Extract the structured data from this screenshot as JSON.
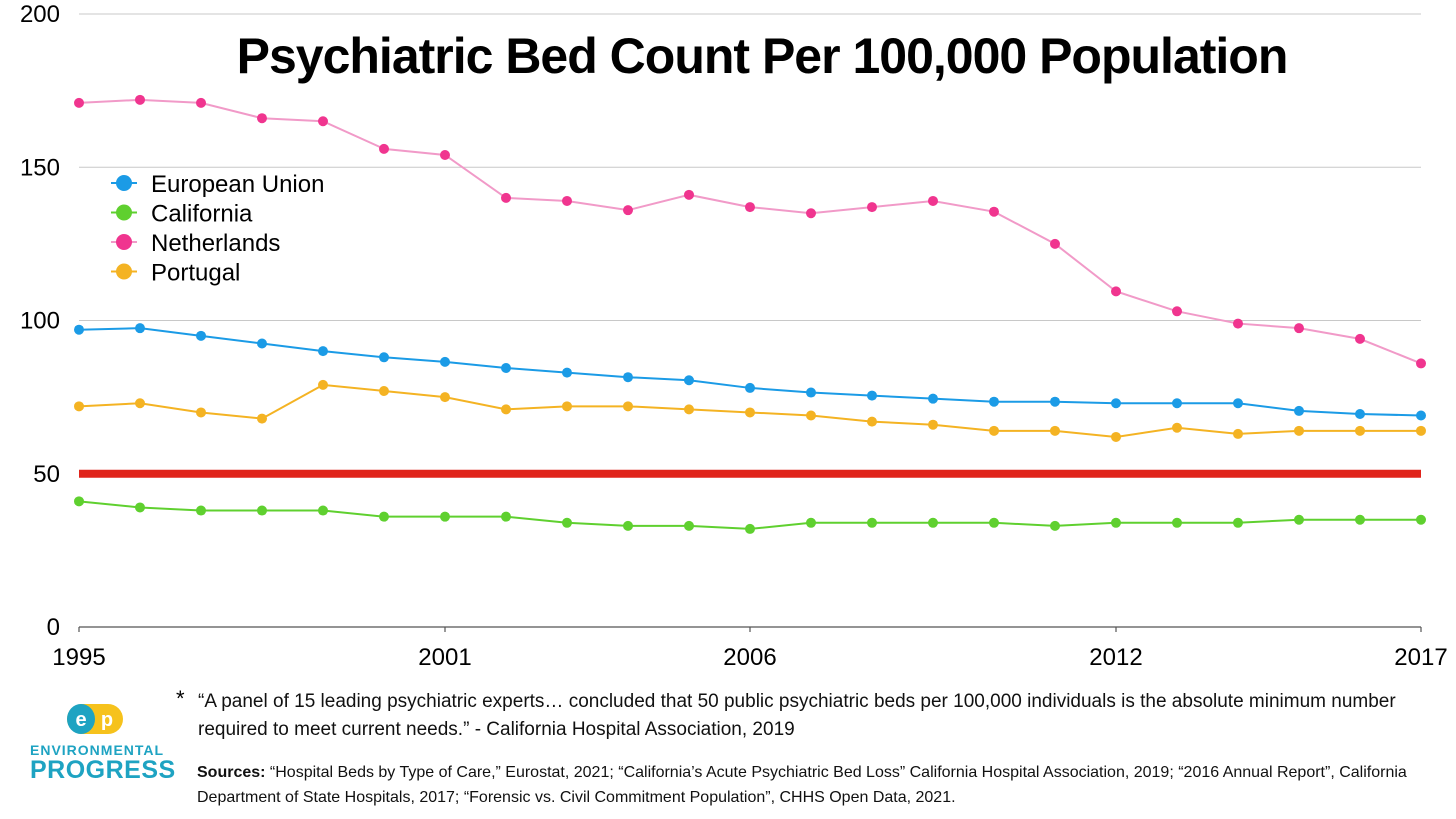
{
  "chart_data": {
    "type": "line",
    "title": "Psychiatric Bed Count Per 100,000 Population",
    "xlim": [
      1995,
      2017
    ],
    "ylim": [
      0,
      200
    ],
    "x_ticks": [
      "1995",
      "2001",
      "2006",
      "2012",
      "2017"
    ],
    "y_ticks": [
      "0",
      "50",
      "100",
      "150",
      "200"
    ],
    "grid": true,
    "legend_position": "top-left",
    "x": [
      1995,
      1996,
      1997,
      1998,
      1999,
      2000,
      2001,
      2002,
      2003,
      2004,
      2005,
      2006,
      2007,
      2008,
      2009,
      2010,
      2011,
      2012,
      2013,
      2014,
      2015,
      2016,
      2017
    ],
    "series": [
      {
        "name": "European Union",
        "color": "#1b9be6",
        "line_color": "#1b9be6",
        "values": [
          97,
          97.5,
          95,
          92.5,
          90,
          88,
          86.5,
          84.5,
          83,
          81.5,
          80.5,
          78,
          76.5,
          75.5,
          74.5,
          73.5,
          73.5,
          73,
          73,
          73,
          70.5,
          69.5,
          69
        ]
      },
      {
        "name": "California",
        "color": "#5fd02f",
        "line_color": "#5fd02f",
        "values": [
          41,
          39,
          38,
          38,
          38,
          36,
          36,
          36,
          34,
          33,
          33,
          32,
          34,
          34,
          34,
          34,
          33,
          34,
          34,
          34,
          35,
          35,
          35
        ]
      },
      {
        "name": "Netherlands",
        "color": "#f0358f",
        "line_color": "#f19ac8",
        "values": [
          171,
          172,
          171,
          166,
          165,
          156,
          154,
          140,
          139,
          136,
          141,
          137,
          135,
          137,
          139,
          135.5,
          125,
          109.5,
          103,
          99,
          97.5,
          94,
          86
        ]
      },
      {
        "name": "Portugal",
        "color": "#f4b323",
        "line_color": "#f4b323",
        "values": [
          72,
          73,
          70,
          68,
          79,
          77,
          75,
          71,
          72,
          72,
          71,
          70,
          69,
          67,
          66,
          64,
          64,
          62,
          65,
          63,
          64,
          64,
          64
        ]
      }
    ],
    "reference_line": {
      "value": 50,
      "color": "#e0241b"
    }
  },
  "footnote": {
    "marker": "*",
    "quote": "“A panel of 15 leading psychiatric experts… concluded that 50 public psychiatric beds per 100,000 individuals is the absolute minimum number required to meet current needs.” - California Hospital Association, 2019"
  },
  "sources": {
    "label": "Sources:",
    "text": " “Hospital Beds by Type of Care,” Eurostat, 2021; “California’s Acute Psychiatric Bed Loss” California Hospital Association, 2019; “2016 Annual Report”, California Department of State Hospitals, 2017; “Forensic vs. Civil Commitment Population”, CHHS Open Data, 2021."
  },
  "logo": {
    "icon": "environmental-progress-logo-icon",
    "line1": "ENVIRONMENTAL",
    "line2": "PROGRESS",
    "colors": {
      "teal": "#1ea3c2",
      "yellow": "#f6c21c"
    }
  }
}
